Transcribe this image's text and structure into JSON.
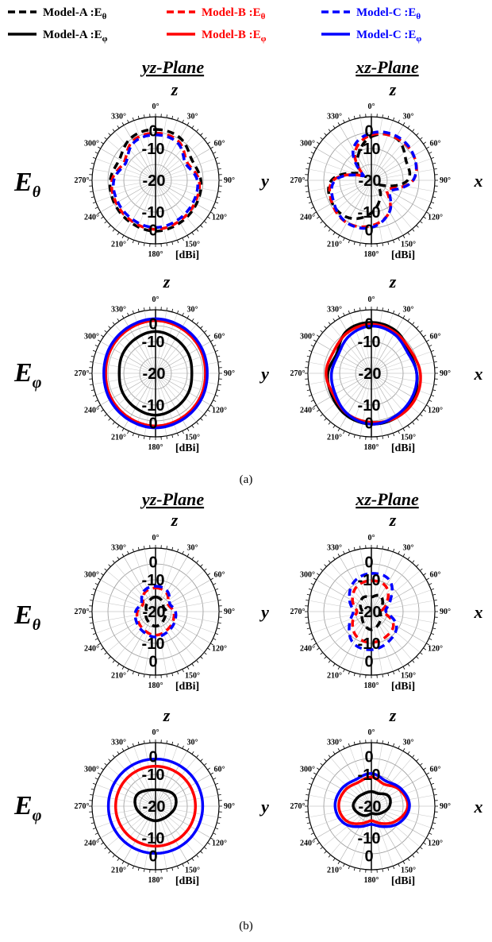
{
  "legend": [
    {
      "model": "Model-A",
      "comp": "E",
      "sub": "θ",
      "color": "#000000",
      "dash": true
    },
    {
      "model": "Model-B",
      "comp": "E",
      "sub": "θ",
      "color": "#ff0000",
      "dash": true
    },
    {
      "model": "Model-C",
      "comp": "E",
      "sub": "θ",
      "color": "#0000ff",
      "dash": true
    },
    {
      "model": "Model-A",
      "comp": "E",
      "sub": "φ",
      "color": "#000000",
      "dash": false
    },
    {
      "model": "Model-B",
      "comp": "E",
      "sub": "φ",
      "color": "#ff0000",
      "dash": false
    },
    {
      "model": "Model-C",
      "comp": "E",
      "sub": "φ",
      "color": "#0000ff",
      "dash": false
    }
  ],
  "panels": [
    {
      "caption": "(a)",
      "yz_title": "yz-Plane",
      "xz_title": "xz-Plane"
    },
    {
      "caption": "(b)",
      "yz_title": "yz-Plane",
      "xz_title": "xz-Plane"
    }
  ],
  "axis_letters": {
    "z": "z",
    "y": "y",
    "x": "x"
  },
  "row_labels": {
    "theta": "E",
    "theta_sub": "θ",
    "phi": "E",
    "phi_sub": "φ"
  },
  "unit_label": "[dBi]",
  "angle_labels": [
    "0°",
    "30°",
    "60°",
    "90°",
    "120°",
    "150°",
    "180°",
    "210°",
    "240°",
    "270°",
    "300°",
    "330°"
  ],
  "chart_data": [
    {
      "type": "polar",
      "panel": "a",
      "plane": "yz",
      "component": "E_theta",
      "r_range_dBi": [
        -30,
        5
      ],
      "r_ticks": [
        0,
        -10,
        -20,
        -10,
        0
      ],
      "series": [
        {
          "name": "Model-A : Eθ",
          "style": "dash",
          "color": "#000000",
          "radius_dBi": [
            -2,
            -3,
            -7,
            -5,
            -4,
            -3,
            -2,
            -3,
            -4,
            -5,
            -7,
            -3
          ]
        },
        {
          "name": "Model-B : Eθ",
          "style": "dash",
          "color": "#ff0000",
          "radius_dBi": [
            -4,
            -5,
            -10,
            -6,
            -5,
            -4,
            -3,
            -4,
            -5,
            -6,
            -10,
            -5
          ]
        },
        {
          "name": "Model-C : Eθ",
          "style": "dash",
          "color": "#0000ff",
          "radius_dBi": [
            -5,
            -6,
            -11,
            -7,
            -6,
            -5,
            -4,
            -5,
            -6,
            -7,
            -11,
            -6
          ]
        }
      ]
    },
    {
      "type": "polar",
      "panel": "a",
      "plane": "xz",
      "component": "E_theta",
      "r_range_dBi": [
        -30,
        5
      ],
      "r_ticks": [
        0,
        -10,
        -20,
        -10,
        0
      ],
      "series": [
        {
          "name": "Model-A : Eθ",
          "style": "dash",
          "color": "#000000",
          "radius_dBi": [
            -6,
            -3,
            -8,
            -10,
            -25,
            -20,
            -12,
            -6,
            -5,
            -8,
            -22,
            -15
          ]
        },
        {
          "name": "Model-B : Eθ",
          "style": "dash",
          "color": "#ff0000",
          "radius_dBi": [
            -5,
            -3,
            -3,
            -7,
            -20,
            -10,
            -5,
            -3,
            -5,
            -9,
            -25,
            -12
          ]
        },
        {
          "name": "Model-C : Eθ",
          "style": "dash",
          "color": "#0000ff",
          "radius_dBi": [
            -4,
            -2,
            -3,
            -7,
            -18,
            -10,
            -4,
            -3,
            -6,
            -10,
            -25,
            -10
          ]
        }
      ]
    },
    {
      "type": "polar",
      "panel": "a",
      "plane": "yz",
      "component": "E_phi",
      "r_range_dBi": [
        -30,
        5
      ],
      "r_ticks": [
        0,
        -10,
        -20,
        -10,
        0
      ],
      "series": [
        {
          "name": "Model-A : Eφ",
          "style": "solid",
          "color": "#000000",
          "radius_dBi": [
            -7,
            -8,
            -9,
            -10,
            -9,
            -8,
            -7,
            -8,
            -9,
            -10,
            -9,
            -8
          ]
        },
        {
          "name": "Model-B : Eφ",
          "style": "solid",
          "color": "#ff0000",
          "radius_dBi": [
            -1,
            -1.5,
            -2,
            -2.5,
            -2,
            -1.5,
            -1,
            -1.5,
            -2,
            -2.5,
            -2,
            -1.5
          ]
        },
        {
          "name": "Model-C : Eφ",
          "style": "solid",
          "color": "#0000ff",
          "radius_dBi": [
            0,
            -0.5,
            -1,
            -1.5,
            -1,
            -0.5,
            0,
            -0.5,
            -1,
            -1.5,
            -1,
            -0.5
          ]
        }
      ]
    },
    {
      "type": "polar",
      "panel": "a",
      "plane": "xz",
      "component": "E_phi",
      "r_range_dBi": [
        -30,
        5
      ],
      "r_ticks": [
        0,
        -10,
        -20,
        -10,
        0
      ],
      "series": [
        {
          "name": "Model-A : Eφ",
          "style": "solid",
          "color": "#000000",
          "radius_dBi": [
            -2,
            -3,
            -6,
            -5,
            -3,
            -2,
            -2,
            -3,
            -5,
            -6,
            -8,
            -3
          ]
        },
        {
          "name": "Model-B : Eφ",
          "style": "solid",
          "color": "#ff0000",
          "radius_dBi": [
            -3,
            -4,
            -5,
            -3,
            -2,
            -2,
            -3,
            -4,
            -6,
            -5,
            -6,
            -4
          ]
        },
        {
          "name": "Model-C : Eφ",
          "style": "solid",
          "color": "#0000ff",
          "radius_dBi": [
            -4,
            -5,
            -7,
            -5,
            -4,
            -3,
            -2,
            -4,
            -7,
            -8,
            -9,
            -6
          ]
        }
      ]
    },
    {
      "type": "polar",
      "panel": "b",
      "plane": "yz",
      "component": "E_theta",
      "r_range_dBi": [
        -30,
        5
      ],
      "r_ticks": [
        0,
        -10,
        -20,
        -10,
        0
      ],
      "series": [
        {
          "name": "Model-A : Eθ",
          "style": "dash",
          "color": "#000000",
          "radius_dBi": [
            -22,
            -23,
            -25,
            -24,
            -24,
            -23,
            -22,
            -23,
            -24,
            -25,
            -24,
            -23
          ]
        },
        {
          "name": "Model-B : Eθ",
          "style": "dash",
          "color": "#ff0000",
          "radius_dBi": [
            -17,
            -18,
            -22,
            -20,
            -19,
            -18,
            -17,
            -18,
            -19,
            -20,
            -22,
            -18
          ]
        },
        {
          "name": "Model-C : Eθ",
          "style": "dash",
          "color": "#0000ff",
          "radius_dBi": [
            -16,
            -17,
            -21,
            -19,
            -18,
            -17,
            -16,
            -17,
            -18,
            -19,
            -21,
            -17
          ]
        }
      ]
    },
    {
      "type": "polar",
      "panel": "b",
      "plane": "xz",
      "component": "E_theta",
      "r_range_dBi": [
        -30,
        5
      ],
      "r_ticks": [
        0,
        -10,
        -20,
        -10,
        0
      ],
      "series": [
        {
          "name": "Model-A : Eθ",
          "style": "dash",
          "color": "#000000",
          "radius_dBi": [
            -22,
            -20,
            -23,
            -25,
            -24,
            -22,
            -20,
            -22,
            -24,
            -25,
            -23,
            -21
          ]
        },
        {
          "name": "Model-B : Eθ",
          "style": "dash",
          "color": "#ff0000",
          "radius_dBi": [
            -13,
            -14,
            -20,
            -24,
            -16,
            -14,
            -13,
            -14,
            -18,
            -22,
            -18,
            -14
          ]
        },
        {
          "name": "Model-C : Eθ",
          "style": "dash",
          "color": "#0000ff",
          "radius_dBi": [
            -9,
            -10,
            -18,
            -22,
            -14,
            -11,
            -9,
            -10,
            -16,
            -20,
            -16,
            -11
          ]
        }
      ]
    },
    {
      "type": "polar",
      "panel": "b",
      "plane": "yz",
      "component": "E_phi",
      "r_range_dBi": [
        -30,
        5
      ],
      "r_ticks": [
        0,
        -10,
        -20,
        -10,
        0
      ],
      "series": [
        {
          "name": "Model-A : Eφ",
          "style": "solid",
          "color": "#000000",
          "radius_dBi": [
            -21,
            -20,
            -18,
            -19,
            -21,
            -22,
            -22,
            -22,
            -21,
            -19,
            -18,
            -20
          ]
        },
        {
          "name": "Model-B : Eφ",
          "style": "solid",
          "color": "#ff0000",
          "radius_dBi": [
            -8,
            -8,
            -8,
            -8,
            -8,
            -8,
            -8,
            -8,
            -8,
            -8,
            -8,
            -8
          ]
        },
        {
          "name": "Model-C : Eφ",
          "style": "solid",
          "color": "#0000ff",
          "radius_dBi": [
            -4,
            -4,
            -4,
            -4,
            -4,
            -4,
            -4,
            -4,
            -4,
            -4,
            -4,
            -4
          ]
        }
      ]
    },
    {
      "type": "polar",
      "panel": "b",
      "plane": "xz",
      "component": "E_phi",
      "r_range_dBi": [
        -30,
        5
      ],
      "r_ticks": [
        0,
        -10,
        -20,
        -10,
        0
      ],
      "series": [
        {
          "name": "Model-A : Eφ",
          "style": "solid",
          "color": "#000000",
          "radius_dBi": [
            -22,
            -22,
            -19,
            -20,
            -23,
            -25,
            -26,
            -24,
            -22,
            -20,
            -21,
            -22
          ]
        },
        {
          "name": "Model-B : Eφ",
          "style": "solid",
          "color": "#ff0000",
          "radius_dBi": [
            -14,
            -16,
            -12,
            -10,
            -14,
            -19,
            -22,
            -19,
            -14,
            -12,
            -13,
            -15
          ]
        },
        {
          "name": "Model-C : Eφ",
          "style": "solid",
          "color": "#0000ff",
          "radius_dBi": [
            -12,
            -14,
            -11,
            -9,
            -12,
            -17,
            -20,
            -17,
            -12,
            -10,
            -11,
            -13
          ]
        }
      ]
    }
  ]
}
